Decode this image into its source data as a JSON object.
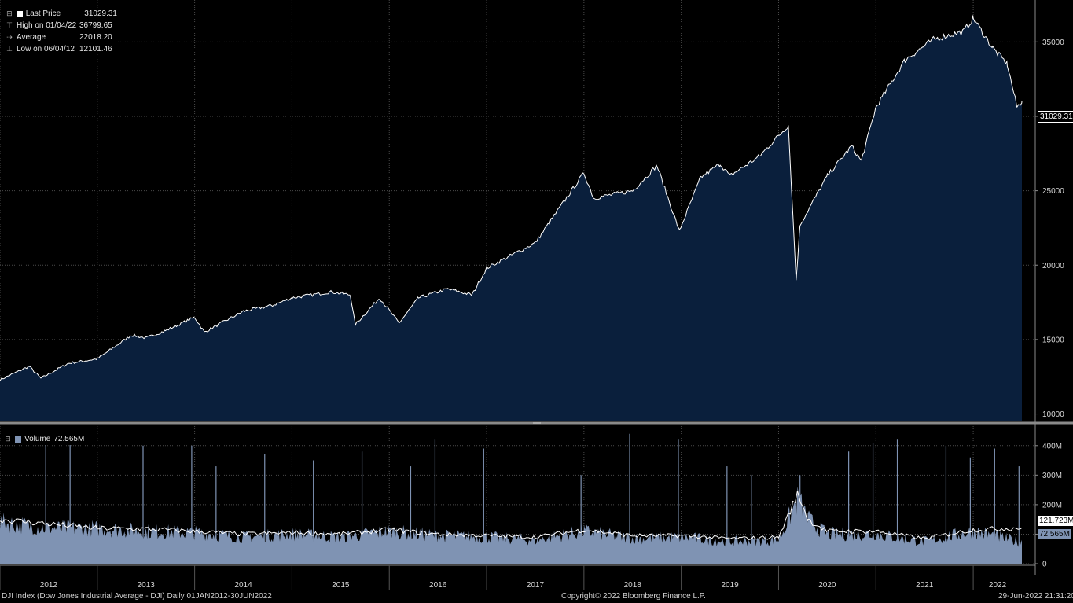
{
  "legend_price": {
    "rows": [
      {
        "icon": "square",
        "label": "Last Price",
        "value": "31029.31"
      },
      {
        "icon": "high",
        "label": "High on 01/04/22",
        "value": "36799.65"
      },
      {
        "icon": "avg",
        "label": "Average",
        "value": "22018.20"
      },
      {
        "icon": "low",
        "label": "Low on 06/04/12",
        "value": "12101.46"
      }
    ]
  },
  "legend_volume": {
    "label": "Volume",
    "value": "72.565M"
  },
  "last_price_tag": "31029.31",
  "volume_tags": {
    "avg": "121.723M",
    "last": "72.565M"
  },
  "footer": {
    "left": "DJI Index (Dow Jones Industrial Average - DJI)  Daily 01JAN2012-30JUN2022",
    "center": "Copyright© 2022 Bloomberg Finance L.P.",
    "right": "29-Jun-2022 21:31:20"
  },
  "colors": {
    "price_fill": "#0a1f3c",
    "price_line": "#ffffff",
    "volume_fill": "#7f93b3",
    "volume_line": "#ffffff",
    "grid": "#4a4a4a",
    "background": "#000000"
  },
  "chart_data": [
    {
      "type": "area",
      "title": "",
      "ylim": [
        9500,
        37500
      ],
      "yticks": [
        10000,
        15000,
        20000,
        25000,
        30000,
        35000
      ],
      "ytick_labels": [
        "10000",
        "15000",
        "20000",
        "25000",
        "30000",
        "35000"
      ],
      "grid": true,
      "series": [
        {
          "name": "Last Price",
          "x": [
            2012.0,
            2012.3,
            2012.42,
            2012.7,
            2013.0,
            2013.35,
            2013.5,
            2013.7,
            2014.0,
            2014.1,
            2014.5,
            2014.8,
            2015.0,
            2015.4,
            2015.6,
            2015.65,
            2015.9,
            2016.1,
            2016.3,
            2016.6,
            2016.85,
            2017.0,
            2017.5,
            2018.0,
            2018.1,
            2018.5,
            2018.75,
            2018.98,
            2019.2,
            2019.4,
            2019.5,
            2019.8,
            2020.1,
            2020.18,
            2020.22,
            2020.5,
            2020.75,
            2020.85,
            2021.0,
            2021.3,
            2021.6,
            2021.9,
            2022.0,
            2022.2,
            2022.35,
            2022.45,
            2022.5
          ],
          "y": [
            12300,
            13200,
            12400,
            13400,
            13700,
            15300,
            15100,
            15600,
            16500,
            15500,
            16900,
            17300,
            17800,
            18200,
            18000,
            16000,
            17800,
            16100,
            17800,
            18400,
            18000,
            19800,
            21500,
            26200,
            24500,
            25000,
            26700,
            22300,
            25900,
            26800,
            26000,
            27300,
            29400,
            19000,
            22700,
            26000,
            28000,
            27000,
            30600,
            33800,
            35200,
            35700,
            36600,
            34600,
            33500,
            30600,
            31029
          ]
        }
      ]
    },
    {
      "type": "bar",
      "title": "",
      "ylim": [
        0,
        450
      ],
      "yticks": [
        0,
        100,
        200,
        300,
        400
      ],
      "ytick_labels": [
        "0",
        "100M",
        "200M",
        "300M",
        "400M"
      ],
      "grid": true,
      "series": [
        {
          "name": "Volume",
          "x": [
            2012.0,
            2012.5,
            2013.0,
            2013.5,
            2014.0,
            2014.5,
            2015.0,
            2015.5,
            2016.0,
            2016.5,
            2017.0,
            2017.5,
            2018.0,
            2018.5,
            2019.0,
            2019.5,
            2020.0,
            2020.2,
            2020.3,
            2020.5,
            2021.0,
            2021.5,
            2022.0,
            2022.5
          ],
          "y": [
            140,
            120,
            120,
            110,
            105,
            90,
            100,
            90,
            110,
            95,
            90,
            80,
            110,
            85,
            90,
            75,
            80,
            220,
            150,
            100,
            100,
            75,
            110,
            72.565
          ]
        },
        {
          "name": "",
          "x": [
            2012.0,
            2012.5,
            2013.0,
            2013.5,
            2014.0,
            2014.5,
            2015.0,
            2015.5,
            2016.0,
            2016.5,
            2017.0,
            2017.5,
            2018.0,
            2018.5,
            2019.0,
            2019.5,
            2020.0,
            2020.2,
            2020.3,
            2020.5,
            2021.0,
            2021.5,
            2022.0,
            2022.5
          ],
          "y": [
            150,
            135,
            120,
            118,
            110,
            100,
            105,
            100,
            115,
            100,
            95,
            90,
            115,
            95,
            95,
            85,
            90,
            240,
            150,
            110,
            110,
            85,
            115,
            121.723
          ]
        }
      ],
      "spikes": [
        {
          "x": 2012.47,
          "y": 420
        },
        {
          "x": 2012.72,
          "y": 410
        },
        {
          "x": 2013.47,
          "y": 400
        },
        {
          "x": 2013.97,
          "y": 400
        },
        {
          "x": 2014.22,
          "y": 330
        },
        {
          "x": 2014.72,
          "y": 370
        },
        {
          "x": 2015.22,
          "y": 350
        },
        {
          "x": 2015.72,
          "y": 380
        },
        {
          "x": 2016.22,
          "y": 330
        },
        {
          "x": 2016.47,
          "y": 420
        },
        {
          "x": 2016.97,
          "y": 390
        },
        {
          "x": 2017.97,
          "y": 300
        },
        {
          "x": 2018.47,
          "y": 440
        },
        {
          "x": 2018.97,
          "y": 420
        },
        {
          "x": 2019.47,
          "y": 330
        },
        {
          "x": 2019.72,
          "y": 300
        },
        {
          "x": 2020.22,
          "y": 300
        },
        {
          "x": 2020.72,
          "y": 380
        },
        {
          "x": 2020.97,
          "y": 410
        },
        {
          "x": 2021.22,
          "y": 420
        },
        {
          "x": 2021.72,
          "y": 400
        },
        {
          "x": 2021.97,
          "y": 360
        },
        {
          "x": 2022.22,
          "y": 390
        },
        {
          "x": 2022.47,
          "y": 330
        }
      ]
    }
  ],
  "xaxis": {
    "labels": [
      "2012",
      "2013",
      "2014",
      "2015",
      "2016",
      "2017",
      "2018",
      "2019",
      "2020",
      "2021",
      "2022"
    ],
    "range": [
      2012.0,
      2022.5
    ]
  }
}
